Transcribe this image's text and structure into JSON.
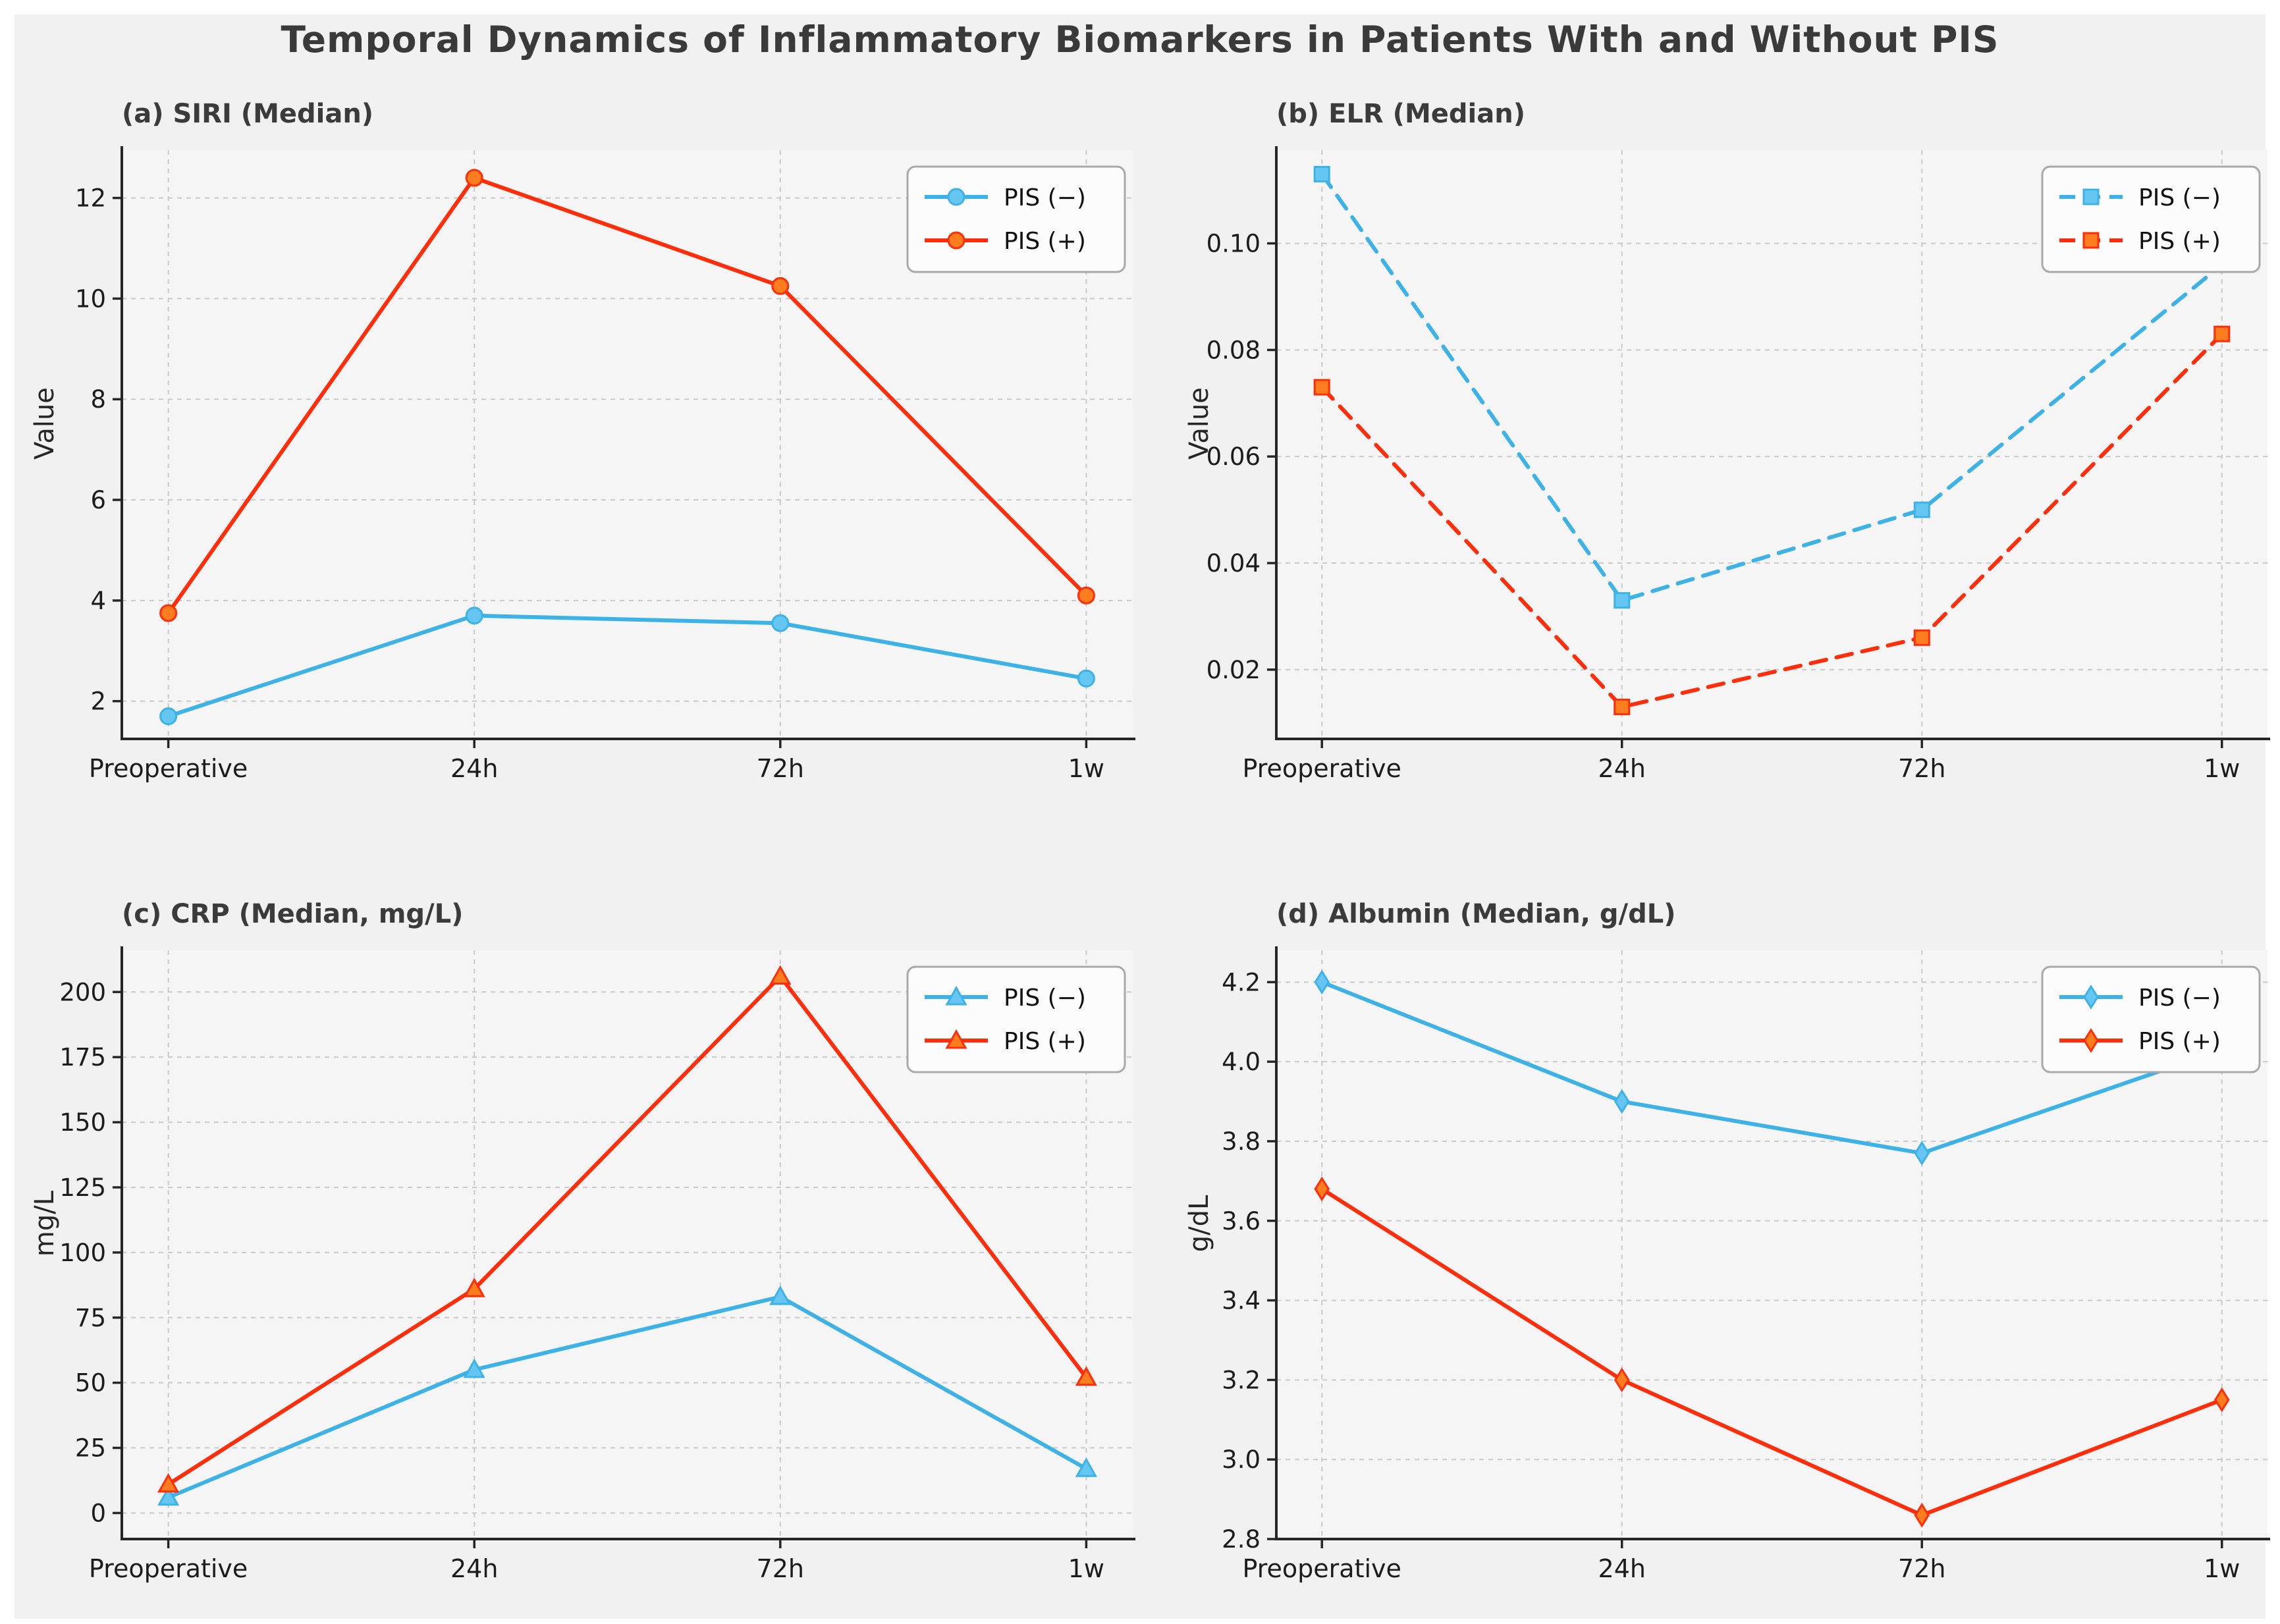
{
  "title": "Temporal Dynamics of Inflammatory Biomarkers in Patients With and Without PIS",
  "categories": [
    "Preoperative",
    "24h",
    "72h",
    "1w"
  ],
  "legend": {
    "neg_label": "PIS (−)",
    "pos_label": "PIS (+)"
  },
  "colors": {
    "pis_neg_line": "#3db2e7",
    "pis_neg_marker": "#66c6f2",
    "pis_pos_line": "#ff2d0a",
    "pis_pos_marker": "#ff7d1e",
    "grid": "#c9c9c9",
    "spine": "#262626",
    "tick_text": "#1c1c1c",
    "figure_bg": "#f1f1f2",
    "plot_bg": "#f5f5f6",
    "legend_bg": "#fcfcfc",
    "legend_border": "#a9a9a9",
    "title_color": "#3a3a3a"
  },
  "chart_data": [
    {
      "type": "line",
      "panel_title": "(a) SIRI (Median)",
      "ylabel": "Value",
      "xlabel": "",
      "categories": [
        "Preoperative",
        "24h",
        "72h",
        "1w"
      ],
      "marker": "circle",
      "line_style": "solid",
      "grid": true,
      "legend_position": "top-right",
      "ylim": [
        1.25,
        12.95
      ],
      "yticks": [
        2,
        4,
        6,
        8,
        10,
        12
      ],
      "ytick_labels": [
        "2",
        "4",
        "6",
        "8",
        "10",
        "12"
      ],
      "series": [
        {
          "name": "PIS (−)",
          "key": "neg",
          "values": [
            1.7,
            3.7,
            3.55,
            2.45
          ]
        },
        {
          "name": "PIS (+)",
          "key": "pos",
          "values": [
            3.75,
            12.4,
            10.25,
            4.1
          ]
        }
      ]
    },
    {
      "type": "line",
      "panel_title": "(b) ELR (Median)",
      "ylabel": "Value",
      "xlabel": "",
      "categories": [
        "Preoperative",
        "24h",
        "72h",
        "1w"
      ],
      "marker": "square",
      "line_style": "dashed",
      "grid": true,
      "legend_position": "top-right",
      "ylim": [
        0.007,
        0.1175
      ],
      "yticks": [
        0.02,
        0.04,
        0.06,
        0.08,
        0.1
      ],
      "ytick_labels": [
        "0.02",
        "0.04",
        "0.06",
        "0.08",
        "0.10"
      ],
      "series": [
        {
          "name": "PIS (−)",
          "key": "neg",
          "values": [
            0.113,
            0.033,
            0.05,
            0.096
          ]
        },
        {
          "name": "PIS (+)",
          "key": "pos",
          "values": [
            0.073,
            0.013,
            0.026,
            0.083
          ]
        }
      ]
    },
    {
      "type": "line",
      "panel_title": "(c) CRP (Median, mg/L)",
      "ylabel": "mg/L",
      "xlabel": "",
      "categories": [
        "Preoperative",
        "24h",
        "72h",
        "1w"
      ],
      "marker": "triangle",
      "line_style": "solid",
      "grid": true,
      "legend_position": "top-right",
      "ylim": [
        -10,
        216
      ],
      "yticks": [
        0,
        25,
        50,
        75,
        100,
        125,
        150,
        175,
        200
      ],
      "ytick_labels": [
        "0",
        "25",
        "50",
        "75",
        "100",
        "125",
        "150",
        "175",
        "200"
      ],
      "series": [
        {
          "name": "PIS (−)",
          "key": "neg",
          "values": [
            6,
            55,
            83,
            17
          ]
        },
        {
          "name": "PIS (+)",
          "key": "pos",
          "values": [
            11,
            86,
            206,
            52
          ]
        }
      ]
    },
    {
      "type": "line",
      "panel_title": "(d) Albumin (Median, g/dL)",
      "ylabel": "g/dL",
      "xlabel": "",
      "categories": [
        "Preoperative",
        "24h",
        "72h",
        "1w"
      ],
      "marker": "diamond",
      "line_style": "solid",
      "grid": true,
      "legend_position": "top-right",
      "ylim": [
        2.8,
        4.28
      ],
      "yticks": [
        2.8,
        3.0,
        3.2,
        3.4,
        3.6,
        3.8,
        4.0,
        4.2
      ],
      "ytick_labels": [
        "2.8",
        "3.0",
        "3.2",
        "3.4",
        "3.6",
        "3.8",
        "4.0",
        "4.2"
      ],
      "series": [
        {
          "name": "PIS (−)",
          "key": "neg",
          "values": [
            4.2,
            3.9,
            3.77,
            4.03
          ]
        },
        {
          "name": "PIS (+)",
          "key": "pos",
          "values": [
            3.68,
            3.2,
            2.86,
            3.15
          ]
        }
      ]
    }
  ]
}
